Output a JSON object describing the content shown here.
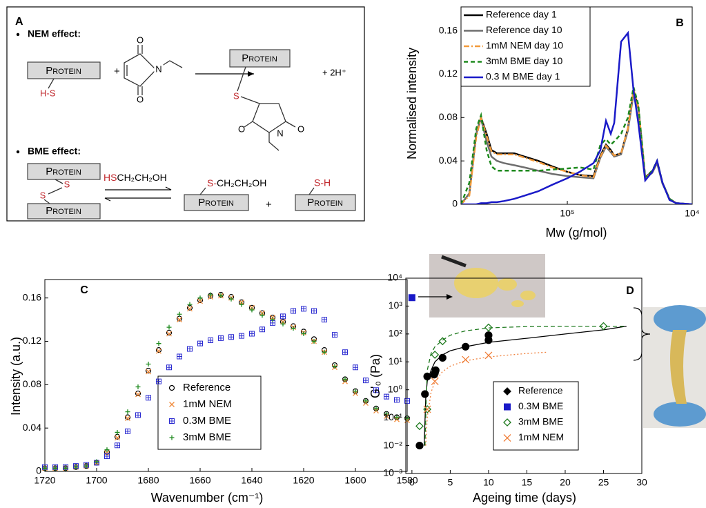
{
  "panel_a": {
    "label": "A",
    "nem": {
      "heading": "NEM effect:",
      "protein": "Protein",
      "thiol": "H-S",
      "plus": "+",
      "reagent_atoms": [
        "O",
        "N",
        "O"
      ],
      "product_thiol": "S",
      "product_atoms": [
        "O",
        "N",
        "O"
      ],
      "release": "+ 2H⁺"
    },
    "bme": {
      "heading": "BME effect:",
      "protein": "Protein",
      "disulfide": [
        "S",
        "S"
      ],
      "reagent_thiol": "HS",
      "reagent_rest": "CH₂CH₂OH",
      "product_thiol": "S-",
      "product_rest": "CH₂CH₂OH",
      "plus": "+",
      "thiol": "S-H"
    }
  },
  "chart_data": [
    {
      "type": "line",
      "label": "B",
      "ylabel": "Normalised intensity",
      "xlabel": "Mw (g/mol)",
      "log_x": true,
      "xlim": [
        710000,
        10000
      ],
      "xticks": [
        {
          "value": 100000,
          "label": "10⁵"
        },
        {
          "value": 10000,
          "label": "10⁴"
        }
      ],
      "ylim": [
        0,
        0.182
      ],
      "yticks": [
        0,
        0.04,
        0.08,
        0.12,
        0.16
      ],
      "legend": "upper left",
      "legend_colored_text": true,
      "x": [
        710000,
        609000,
        536000,
        491000,
        443000,
        405000,
        366000,
        322000,
        266000,
        220000,
        171000,
        132000,
        100000,
        79500,
        61700,
        54300,
        49000,
        44900,
        42100,
        37100,
        32700,
        29500,
        27000,
        23800,
        20900,
        19100,
        17300,
        15200,
        13400,
        10000
      ],
      "series": [
        {
          "name": "Reference day 1",
          "color": "#000000",
          "style": "solid",
          "values": [
            0,
            0.01,
            0.065,
            0.08,
            0.065,
            0.05,
            0.047,
            0.047,
            0.047,
            0.044,
            0.04,
            0.035,
            0.03,
            0.027,
            0.026,
            0.045,
            0.055,
            0.05,
            0.045,
            0.047,
            0.07,
            0.105,
            0.09,
            0.025,
            0.03,
            0.04,
            0.02,
            0.005,
            0.001,
            0
          ]
        },
        {
          "name": "Reference day 10",
          "color": "#6e6e6e",
          "style": "solid",
          "values": [
            0,
            0.01,
            0.065,
            0.079,
            0.058,
            0.044,
            0.04,
            0.038,
            0.036,
            0.034,
            0.031,
            0.028,
            0.026,
            0.025,
            0.024,
            0.043,
            0.053,
            0.048,
            0.044,
            0.046,
            0.068,
            0.102,
            0.088,
            0.024,
            0.029,
            0.038,
            0.019,
            0.005,
            0.001,
            0
          ]
        },
        {
          "name": "1mM NEM day 10",
          "color": "#f39a3a",
          "style": "dashdot",
          "values": [
            0,
            0.008,
            0.062,
            0.08,
            0.063,
            0.049,
            0.046,
            0.046,
            0.046,
            0.043,
            0.039,
            0.034,
            0.03,
            0.027,
            0.025,
            0.044,
            0.054,
            0.049,
            0.045,
            0.047,
            0.07,
            0.106,
            0.09,
            0.024,
            0.03,
            0.04,
            0.02,
            0.005,
            0.001,
            0
          ]
        },
        {
          "name": "3mM BME day 10",
          "color": "#1e8a1e",
          "style": "dashed",
          "values": [
            0,
            0.02,
            0.07,
            0.082,
            0.05,
            0.035,
            0.031,
            0.031,
            0.031,
            0.031,
            0.031,
            0.032,
            0.033,
            0.034,
            0.032,
            0.055,
            0.06,
            0.055,
            0.058,
            0.065,
            0.08,
            0.108,
            0.092,
            0.025,
            0.031,
            0.04,
            0.02,
            0.005,
            0.001,
            0
          ]
        },
        {
          "name": "0.3 M BME day 1",
          "color": "#1a1ac8",
          "style": "solid",
          "values": [
            0,
            0,
            0,
            0.001,
            0.001,
            0.002,
            0.002,
            0.003,
            0.005,
            0.008,
            0.012,
            0.018,
            0.024,
            0.03,
            0.038,
            0.05,
            0.077,
            0.065,
            0.075,
            0.15,
            0.158,
            0.105,
            0.075,
            0.022,
            0.03,
            0.04,
            0.02,
            0.004,
            0.001,
            0
          ]
        }
      ]
    },
    {
      "type": "scatter",
      "label": "C",
      "ylabel": "Intensity (a.u.)",
      "xlabel": "Wavenumber (cm⁻¹)",
      "xlim": [
        1720,
        1580
      ],
      "xticks": [
        1720,
        1700,
        1680,
        1660,
        1640,
        1620,
        1600,
        1580
      ],
      "ylim": [
        0,
        0.177
      ],
      "yticks": [
        0,
        0.04,
        0.08,
        0.12,
        0.16
      ],
      "legend": "lower center",
      "legend_colored_text": true,
      "x": [
        1720,
        1716,
        1712,
        1708,
        1704,
        1700,
        1696,
        1692,
        1688,
        1684,
        1680,
        1676,
        1672,
        1668,
        1664,
        1660,
        1656,
        1652,
        1648,
        1644,
        1640,
        1636,
        1632,
        1628,
        1624,
        1620,
        1616,
        1612,
        1608,
        1604,
        1600,
        1596,
        1592,
        1588,
        1584,
        1580
      ],
      "series": [
        {
          "name": "Reference",
          "color": "#000000",
          "marker": "circle",
          "filled": false,
          "values": [
            0.003,
            0.003,
            0.003,
            0.004,
            0.005,
            0.008,
            0.018,
            0.032,
            0.05,
            0.072,
            0.093,
            0.112,
            0.128,
            0.141,
            0.151,
            0.158,
            0.162,
            0.163,
            0.161,
            0.156,
            0.151,
            0.146,
            0.142,
            0.138,
            0.134,
            0.129,
            0.122,
            0.112,
            0.098,
            0.085,
            0.074,
            0.065,
            0.058,
            0.053,
            0.05,
            0.049
          ]
        },
        {
          "name": "1mM NEM",
          "color": "#f08a3a",
          "marker": "x",
          "filled": false,
          "values": [
            0.003,
            0.003,
            0.003,
            0.004,
            0.005,
            0.008,
            0.017,
            0.031,
            0.049,
            0.071,
            0.092,
            0.111,
            0.127,
            0.14,
            0.15,
            0.157,
            0.161,
            0.162,
            0.16,
            0.156,
            0.151,
            0.146,
            0.142,
            0.138,
            0.133,
            0.128,
            0.12,
            0.11,
            0.096,
            0.083,
            0.072,
            0.063,
            0.056,
            0.051,
            0.048,
            0.047
          ]
        },
        {
          "name": "0.3M BME",
          "color": "#2a2ad0",
          "marker": "square",
          "filled": false,
          "values": [
            0.004,
            0.004,
            0.004,
            0.005,
            0.006,
            0.008,
            0.014,
            0.024,
            0.037,
            0.052,
            0.068,
            0.083,
            0.096,
            0.106,
            0.113,
            0.118,
            0.121,
            0.123,
            0.124,
            0.125,
            0.127,
            0.131,
            0.137,
            0.143,
            0.148,
            0.15,
            0.148,
            0.14,
            0.126,
            0.11,
            0.096,
            0.084,
            0.075,
            0.069,
            0.066,
            0.065
          ]
        },
        {
          "name": "3mM BME",
          "color": "#1e8a1e",
          "marker": "plus",
          "filled": false,
          "values": [
            0.003,
            0.003,
            0.003,
            0.004,
            0.005,
            0.009,
            0.02,
            0.036,
            0.055,
            0.078,
            0.099,
            0.118,
            0.133,
            0.145,
            0.154,
            0.16,
            0.163,
            0.162,
            0.159,
            0.154,
            0.149,
            0.144,
            0.14,
            0.136,
            0.132,
            0.127,
            0.12,
            0.11,
            0.097,
            0.085,
            0.074,
            0.065,
            0.058,
            0.053,
            0.05,
            0.049
          ]
        }
      ]
    },
    {
      "type": "scatter",
      "label": "D",
      "ylabel": "G'₀ (Pa)",
      "xlabel": "Ageing time (days)",
      "xlim": [
        -0.8,
        30
      ],
      "xticks": [
        0,
        5,
        10,
        15,
        20,
        25,
        30
      ],
      "log_y": true,
      "ylim": [
        0.001,
        10000
      ],
      "yticks": [
        {
          "value": 0.001,
          "label": "10⁻³"
        },
        {
          "value": 0.01,
          "label": "10⁻²"
        },
        {
          "value": 0.1,
          "label": "10⁻¹"
        },
        {
          "value": 1,
          "label": "10⁰"
        },
        {
          "value": 10,
          "label": "10¹"
        },
        {
          "value": 100,
          "label": "10²"
        },
        {
          "value": 1000,
          "label": "10³"
        },
        {
          "value": 10000,
          "label": "10⁴"
        }
      ],
      "legend": "lower center",
      "legend_colored_text": false,
      "series": [
        {
          "name": "Reference",
          "color": "#000000",
          "marker": "circle",
          "legend_marker": "diamond",
          "filled": true,
          "x": [
            1,
            1.7,
            2,
            2.9,
            3,
            3.1,
            4,
            7,
            10,
            10
          ],
          "values": [
            0.01,
            0.7,
            3,
            3.5,
            4,
            5,
            14,
            35,
            60,
            90
          ]
        },
        {
          "name": "0.3M BME",
          "color": "#1a1ac8",
          "marker": "square",
          "legend_marker": "square",
          "filled": true,
          "x": [
            0
          ],
          "values": [
            2000
          ]
        },
        {
          "name": "3mM BME",
          "color": "#1e7a1e",
          "marker": "diamond",
          "legend_marker": "diamond",
          "filled": false,
          "x": [
            1,
            2,
            3,
            4,
            10,
            25
          ],
          "values": [
            0.05,
            0.2,
            18,
            55,
            170,
            190
          ]
        },
        {
          "name": "1mM NEM",
          "color": "#f07f3a",
          "marker": "x",
          "legend_marker": "x",
          "filled": false,
          "x": [
            2,
            3,
            7,
            10
          ],
          "values": [
            0.2,
            2,
            12,
            17
          ]
        }
      ],
      "fits": [
        {
          "color": "#000000",
          "style": "solid",
          "x": [
            1.6,
            1.8,
            2,
            2.5,
            3,
            4,
            5,
            7,
            10,
            15,
            20,
            25,
            28
          ],
          "values": [
            0.01,
            0.5,
            2,
            5,
            10,
            18,
            25,
            35,
            50,
            70,
            100,
            140,
            190
          ]
        },
        {
          "color": "#1e7a1e",
          "style": "dashed",
          "x": [
            1.7,
            1.9,
            2,
            2.5,
            3,
            4,
            5,
            7,
            10,
            15,
            20,
            25,
            28
          ],
          "values": [
            0.01,
            1,
            5,
            20,
            35,
            60,
            90,
            130,
            165,
            185,
            190,
            190,
            190
          ]
        },
        {
          "color": "#f07f3a",
          "style": "dotted",
          "x": [
            1.8,
            2,
            2.5,
            3,
            4,
            5,
            7,
            10,
            12,
            15,
            17.5
          ],
          "values": [
            0.01,
            0.1,
            0.8,
            2,
            4.5,
            7,
            11,
            15,
            17,
            20,
            22
          ]
        }
      ]
    }
  ]
}
